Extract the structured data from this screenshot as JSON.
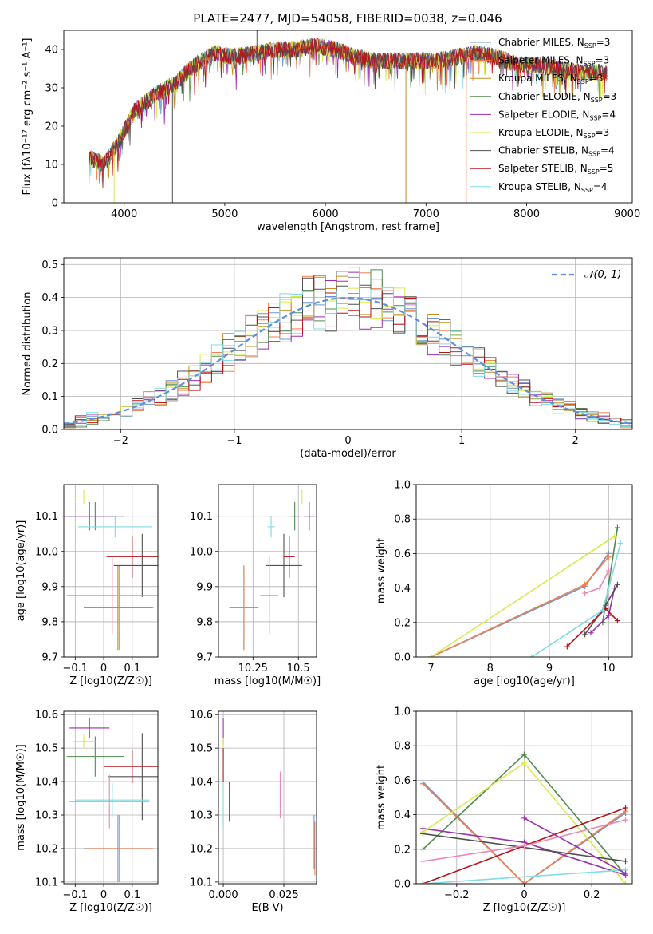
{
  "figure": {
    "title": "PLATE=2477, MJD=54058, FIBERID=0038, z=0.046"
  },
  "legend_entries": [
    {
      "label": "Chabrier MILES, N",
      "sub": "SSP",
      "tail": "=3",
      "color": "#6f94cf"
    },
    {
      "label": "Salpeter MILES, N",
      "sub": "SSP",
      "tail": "=3",
      "color": "#ef8050"
    },
    {
      "label": "Kroupa MILES, N",
      "sub": "SSP",
      "tail": "=3",
      "color": "#c6901e"
    },
    {
      "label": "Chabrier ELODIE, N",
      "sub": "SSP",
      "tail": "=3",
      "color": "#4f8a4f"
    },
    {
      "label": "Salpeter ELODIE, N",
      "sub": "SSP",
      "tail": "=4",
      "color": "#9b2fae"
    },
    {
      "label": "Kroupa ELODIE, N",
      "sub": "SSP",
      "tail": "=3",
      "color": "#d8ea4d"
    },
    {
      "label": "Chabrier STELIB, N",
      "sub": "SSP",
      "tail": "=4",
      "color": "#505050"
    },
    {
      "label": "Salpeter STELIB, N",
      "sub": "SSP",
      "tail": "=5",
      "color": "#b5161b"
    },
    {
      "label": "Kroupa STELIB, N",
      "sub": "SSP",
      "tail": "=4",
      "color": "#7fdce0"
    }
  ],
  "chart_data": [
    {
      "id": "spectrum",
      "type": "line",
      "title": "PLATE=2477, MJD=54058, FIBERID=0038, z=0.046",
      "xlabel": "wavelength [Angstrom, rest frame]",
      "ylabel": "Flux [fλ10⁻¹⁷ erg cm⁻² s⁻¹ A⁻¹]",
      "xlim": [
        3400,
        9050
      ],
      "ylim": [
        0,
        45
      ],
      "xticks": [
        4000,
        5000,
        6000,
        7000,
        8000,
        9000
      ],
      "yticks": [
        0,
        10,
        20,
        30,
        40
      ],
      "continuum_x": [
        3650,
        3800,
        3950,
        4100,
        4300,
        4500,
        4700,
        4900,
        5100,
        5300,
        5500,
        5700,
        5900,
        6100,
        6300,
        6500,
        6700,
        6900,
        7100,
        7300,
        7500,
        7700,
        7900,
        8100,
        8300,
        8500,
        8700,
        8800
      ],
      "continuum_y": [
        12,
        10,
        16,
        24,
        28,
        31,
        36,
        39,
        38,
        39,
        40,
        40,
        41,
        40,
        38,
        37,
        37,
        37,
        37,
        38,
        39,
        38,
        36,
        36,
        35,
        34,
        34,
        34
      ],
      "dropouts": [
        {
          "x": 3900,
          "to": 0
        },
        {
          "x": 4480,
          "to": 0
        },
        {
          "x": 6800,
          "to": 0
        },
        {
          "x": 7400,
          "to": 0
        },
        {
          "x": 5320,
          "to": 45
        }
      ]
    },
    {
      "id": "residuals",
      "type": "histogram",
      "xlabel": "(data-model)/error",
      "ylabel": "Normed distribution",
      "xlim": [
        -2.5,
        2.5
      ],
      "ylim": [
        0,
        0.52
      ],
      "xticks": [
        -2,
        -1,
        0,
        1,
        2
      ],
      "yticks": [
        0.0,
        0.1,
        0.2,
        0.3,
        0.4,
        0.5
      ],
      "bin_width": 0.1,
      "legend": "𝒩(0, 1)",
      "legend_placement": "top-right",
      "reference_curve": "normal(0,1)"
    },
    {
      "id": "age-vs-Z",
      "type": "scatter",
      "xlabel": "Z [log10(Z/Z☉)]",
      "ylabel": "age  [log10(age/yr)]",
      "xlim": [
        -0.14,
        0.19
      ],
      "ylim": [
        9.7,
        10.19
      ],
      "xticks": [
        -0.1,
        0.0,
        0.1
      ],
      "yticks": [
        9.7,
        9.8,
        9.9,
        10.0,
        10.1
      ],
      "points": [
        {
          "series": 0,
          "x": 0.05,
          "y": 9.84,
          "xerr": 0.12,
          "yerr": 0.12
        },
        {
          "series": 1,
          "x": 0.055,
          "y": 9.84,
          "xerr": 0.12,
          "yerr": 0.12
        },
        {
          "series": 2,
          "x": 0.05,
          "y": 9.84,
          "xerr": 0.12,
          "yerr": 0.12
        },
        {
          "series": 3,
          "x": -0.03,
          "y": 10.1,
          "xerr": 0.1,
          "yerr": 0.04
        },
        {
          "series": 4,
          "x": -0.05,
          "y": 10.1,
          "xerr": 0.09,
          "yerr": 0.04
        },
        {
          "series": 5,
          "x": -0.07,
          "y": 10.155,
          "xerr": 0.045,
          "yerr": 0.02
        },
        {
          "series": 6,
          "x": 0.135,
          "y": 9.96,
          "xerr": 0.1,
          "yerr": 0.09
        },
        {
          "series": 7,
          "x": 0.1,
          "y": 9.985,
          "xerr": 0.09,
          "yerr": 0.06
        },
        {
          "series": 8,
          "x": 0.04,
          "y": 10.07,
          "xerr": 0.13,
          "yerr": 0.03
        },
        {
          "series": 9,
          "x": 0.03,
          "y": 9.875,
          "xerr": 0.16,
          "yerr": 0.11
        }
      ]
    },
    {
      "id": "age-vs-mass",
      "type": "scatter",
      "xlabel": "mass [log10(M/M☉)]",
      "ylabel": "",
      "xlim": [
        10.06,
        10.6
      ],
      "ylim": [
        9.7,
        10.19
      ],
      "xticks": [
        10.25,
        10.5
      ],
      "yticks": [
        9.7,
        9.8,
        9.9,
        10.0,
        10.1
      ],
      "points": [
        {
          "series": 0,
          "x": 10.2,
          "y": 9.84,
          "xerr": 0.08,
          "yerr": 0.12
        },
        {
          "series": 1,
          "x": 10.2,
          "y": 9.84,
          "xerr": 0.08,
          "yerr": 0.12
        },
        {
          "series": 4,
          "x": 10.56,
          "y": 10.1,
          "xerr": 0.03,
          "yerr": 0.04
        },
        {
          "series": 5,
          "x": 10.52,
          "y": 10.155,
          "xerr": 0.01,
          "yerr": 0.02
        },
        {
          "series": 3,
          "x": 10.48,
          "y": 10.1,
          "xerr": 0.02,
          "yerr": 0.04
        },
        {
          "series": 6,
          "x": 10.42,
          "y": 9.96,
          "xerr": 0.1,
          "yerr": 0.09
        },
        {
          "series": 7,
          "x": 10.45,
          "y": 9.985,
          "xerr": 0.03,
          "yerr": 0.06
        },
        {
          "series": 8,
          "x": 10.35,
          "y": 10.07,
          "xerr": 0.02,
          "yerr": 0.03
        },
        {
          "series": 9,
          "x": 10.34,
          "y": 9.875,
          "xerr": 0.05,
          "yerr": 0.11
        }
      ]
    },
    {
      "id": "massweight-vs-age",
      "type": "line",
      "xlabel": "age  [log10(age/yr)]",
      "ylabel": "mass weight",
      "xlim": [
        6.75,
        10.4
      ],
      "ylim": [
        0,
        1.0
      ],
      "xticks": [
        7,
        8,
        9,
        10
      ],
      "yticks": [
        0.0,
        0.2,
        0.4,
        0.6,
        0.8,
        1.0
      ],
      "series": [
        {
          "idx": 0,
          "x": [
            7.0,
            9.6,
            10.0
          ],
          "y": [
            0.0,
            0.41,
            0.6
          ]
        },
        {
          "idx": 1,
          "x": [
            7.0,
            9.6,
            10.0
          ],
          "y": [
            0.0,
            0.42,
            0.58
          ]
        },
        {
          "idx": 3,
          "x": [
            9.9,
            10.15
          ],
          "y": [
            0.2,
            0.75
          ]
        },
        {
          "idx": 4,
          "x": [
            9.7,
            10.0,
            10.1
          ],
          "y": [
            0.14,
            0.24,
            0.4
          ]
        },
        {
          "idx": 5,
          "x": [
            7.0,
            10.1
          ],
          "y": [
            0.0,
            0.7
          ]
        },
        {
          "idx": 6,
          "x": [
            9.6,
            9.95,
            10.15
          ],
          "y": [
            0.13,
            0.3,
            0.42
          ]
        },
        {
          "idx": 7,
          "x": [
            9.3,
            9.95,
            10.15
          ],
          "y": [
            0.06,
            0.28,
            0.21
          ]
        },
        {
          "idx": 8,
          "x": [
            8.7,
            9.9,
            10.2
          ],
          "y": [
            0.0,
            0.27,
            0.66
          ]
        },
        {
          "idx": 9,
          "x": [
            9.6,
            9.85,
            10.0
          ],
          "y": [
            0.37,
            0.4,
            0.5
          ]
        }
      ]
    },
    {
      "id": "mass-vs-Z",
      "type": "scatter",
      "xlabel": "Z [log10(Z/Z☉)]",
      "ylabel": "mass [log10(M/M☉)]",
      "xlim": [
        -0.14,
        0.19
      ],
      "ylim": [
        10.095,
        10.61
      ],
      "xticks": [
        -0.1,
        0.0,
        0.1
      ],
      "yticks": [
        10.1,
        10.2,
        10.3,
        10.4,
        10.5,
        10.6
      ],
      "points": [
        {
          "series": 0,
          "x": 0.05,
          "y": 10.2,
          "xerr": 0.12,
          "yerr": 0.1
        },
        {
          "series": 1,
          "x": 0.055,
          "y": 10.2,
          "xerr": 0.12,
          "yerr": 0.1
        },
        {
          "series": 3,
          "x": -0.03,
          "y": 10.475,
          "xerr": 0.1,
          "yerr": 0.06
        },
        {
          "series": 4,
          "x": -0.05,
          "y": 10.56,
          "xerr": 0.07,
          "yerr": 0.03
        },
        {
          "series": 5,
          "x": -0.07,
          "y": 10.52,
          "xerr": 0.04,
          "yerr": 0.02
        },
        {
          "series": 6,
          "x": 0.135,
          "y": 10.415,
          "xerr": 0.12,
          "yerr": 0.13
        },
        {
          "series": 7,
          "x": 0.1,
          "y": 10.445,
          "xerr": 0.1,
          "yerr": 0.05
        },
        {
          "series": 8,
          "x": 0.03,
          "y": 10.345,
          "xerr": 0.13,
          "yerr": 0.05
        },
        {
          "series": 9,
          "x": 0.02,
          "y": 10.34,
          "xerr": 0.14,
          "yerr": 0.08
        }
      ]
    },
    {
      "id": "mass-vs-ebv",
      "type": "scatter",
      "xlabel": "E(B-V)",
      "ylabel": "",
      "xlim": [
        -0.002,
        0.0385
      ],
      "ylim": [
        10.095,
        10.61
      ],
      "xticks": [
        0.0,
        0.025
      ],
      "xticklabels": [
        "0.000",
        "0.025"
      ],
      "yticks": [
        10.1,
        10.2,
        10.3,
        10.4,
        10.5,
        10.6
      ],
      "points": [
        {
          "series": 4,
          "x": 0.0,
          "y": 10.55,
          "xerr": 0,
          "yerr": 0.04
        },
        {
          "series": 5,
          "x": 0.0,
          "y": 10.5,
          "xerr": 0,
          "yerr": 0.03
        },
        {
          "series": 7,
          "x": 0.0,
          "y": 10.45,
          "xerr": 0,
          "yerr": 0.05
        },
        {
          "series": 8,
          "x": 0.0,
          "y": 10.33,
          "xerr": 0,
          "yerr": 0.07
        },
        {
          "series": 6,
          "x": 0.0025,
          "y": 10.34,
          "xerr": 0,
          "yerr": 0.06
        },
        {
          "series": 9,
          "x": 0.0235,
          "y": 10.36,
          "xerr": 0,
          "yerr": 0.07
        },
        {
          "series": 0,
          "x": 0.0375,
          "y": 10.22,
          "xerr": 0,
          "yerr": 0.08
        },
        {
          "series": 1,
          "x": 0.0378,
          "y": 10.2,
          "xerr": 0,
          "yerr": 0.08
        }
      ]
    },
    {
      "id": "massweight-vs-Z",
      "type": "line",
      "xlabel": "Z [log10(Z/Z☉)]",
      "ylabel": "mass weight",
      "xlim": [
        -0.32,
        0.32
      ],
      "ylim": [
        0,
        1.0
      ],
      "xticks": [
        -0.2,
        0.0,
        0.2
      ],
      "yticks": [
        0.0,
        0.2,
        0.4,
        0.6,
        0.8,
        1.0
      ],
      "series": [
        {
          "idx": 0,
          "x": [
            -0.3,
            0.0,
            0.3
          ],
          "y": [
            0.59,
            0.0,
            0.41
          ]
        },
        {
          "idx": 1,
          "x": [
            -0.3,
            0.0,
            0.3
          ],
          "y": [
            0.58,
            0.0,
            0.42
          ]
        },
        {
          "idx": 3,
          "x": [
            -0.3,
            0.0,
            0.3
          ],
          "y": [
            0.2,
            0.75,
            0.05
          ]
        },
        {
          "idx": 4,
          "x": [
            -0.3,
            0.0,
            0.3
          ],
          "y": [
            0.32,
            0.24,
            0.05
          ]
        },
        {
          "idx": 5,
          "x": [
            -0.3,
            0.0,
            0.3
          ],
          "y": [
            0.3,
            0.7,
            0.0
          ]
        },
        {
          "idx": 6,
          "x": [
            -0.3,
            0.3
          ],
          "y": [
            0.29,
            0.13
          ]
        },
        {
          "idx": 7,
          "x": [
            -0.3,
            0.3
          ],
          "y": [
            0.0,
            0.44
          ]
        },
        {
          "idx": 8,
          "x": [
            -0.3,
            0.3
          ],
          "y": [
            0.0,
            0.08
          ]
        },
        {
          "idx": 9,
          "x": [
            -0.3,
            0.0,
            0.3
          ],
          "y": [
            0.13,
            0.22,
            0.37
          ]
        },
        {
          "idx": 4,
          "x": [
            0.0,
            0.3
          ],
          "y": [
            0.38,
            0.06
          ]
        }
      ]
    }
  ],
  "series_colors": [
    "#6f94cf",
    "#ef8050",
    "#c6901e",
    "#4f8a4f",
    "#9b2fae",
    "#d8ea4d",
    "#505050",
    "#b5161b",
    "#7fdce0",
    "#e889b6"
  ]
}
